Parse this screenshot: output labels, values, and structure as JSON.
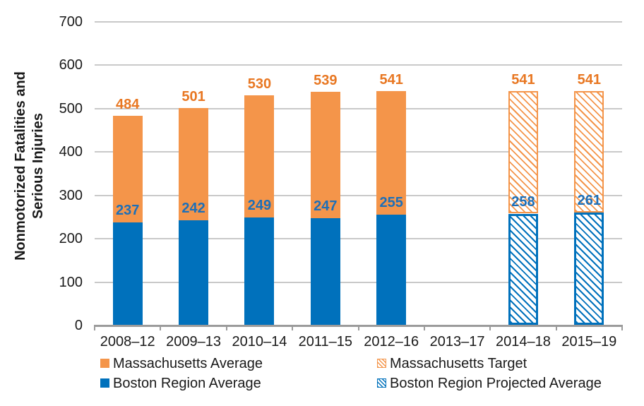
{
  "colors": {
    "boston_blue": "#0071BC",
    "massachusetts_orange": "#F4954A",
    "orange_label": "#E87722",
    "blue_label": "#1D6FB8",
    "gridline": "#C9C9C9",
    "axis": "#9B9B9B",
    "text": "#1A1A1A"
  },
  "y_axis": {
    "title_line1": "Nonmotorized Fatalities and",
    "title_line2": "Serious Injuries",
    "ticks": [
      0,
      100,
      200,
      300,
      400,
      500,
      600,
      700
    ]
  },
  "chart_data": {
    "type": "bar",
    "stacked": true,
    "title": "",
    "xlabel": "",
    "ylabel": "Nonmotorized Fatalities and Serious Injuries",
    "ylim": [
      0,
      700
    ],
    "ytick_interval": 100,
    "grid": "horizontal",
    "legend_position": "bottom",
    "categories": [
      "2008–12",
      "2009–13",
      "2010–14",
      "2011–15",
      "2012–16",
      "2013–17",
      "2014–18",
      "2015–19"
    ],
    "series": [
      {
        "name": "Boston Region Average",
        "color": "#0071BC",
        "pattern": "solid",
        "values": [
          237,
          242,
          249,
          247,
          255,
          null,
          null,
          null
        ]
      },
      {
        "name": "Boston Region Projected Average",
        "color": "#0071BC",
        "pattern": "hatched",
        "values": [
          null,
          null,
          null,
          null,
          null,
          null,
          258,
          261
        ]
      },
      {
        "name": "Massachusetts Average",
        "color": "#F4954A",
        "pattern": "solid",
        "values": [
          247,
          259,
          281,
          292,
          286,
          null,
          null,
          null
        ]
      },
      {
        "name": "Massachusetts Target",
        "color": "#F4954A",
        "pattern": "hatched",
        "values": [
          null,
          null,
          null,
          null,
          null,
          null,
          283,
          280
        ]
      }
    ],
    "bars": [
      {
        "category": "2008–12",
        "boston_value": 237,
        "total_value": 484,
        "projected": false
      },
      {
        "category": "2009–13",
        "boston_value": 242,
        "total_value": 501,
        "projected": false
      },
      {
        "category": "2010–14",
        "boston_value": 249,
        "total_value": 530,
        "projected": false
      },
      {
        "category": "2011–15",
        "boston_value": 247,
        "total_value": 539,
        "projected": false
      },
      {
        "category": "2012–16",
        "boston_value": 255,
        "total_value": 541,
        "projected": false
      },
      {
        "category": "2013–17",
        "boston_value": null,
        "total_value": null,
        "projected": false
      },
      {
        "category": "2014–18",
        "boston_value": 258,
        "total_value": 541,
        "projected": true
      },
      {
        "category": "2015–19",
        "boston_value": 261,
        "total_value": 541,
        "projected": true
      }
    ]
  },
  "legend": {
    "items": [
      {
        "label": "Massachusetts Average",
        "color": "orange",
        "pattern": "solid"
      },
      {
        "label": "Massachusetts Target",
        "color": "orange",
        "pattern": "hatched"
      },
      {
        "label": "Boston Region Average",
        "color": "blue",
        "pattern": "solid"
      },
      {
        "label": "Boston Region Projected Average",
        "color": "blue",
        "pattern": "hatched"
      }
    ]
  }
}
